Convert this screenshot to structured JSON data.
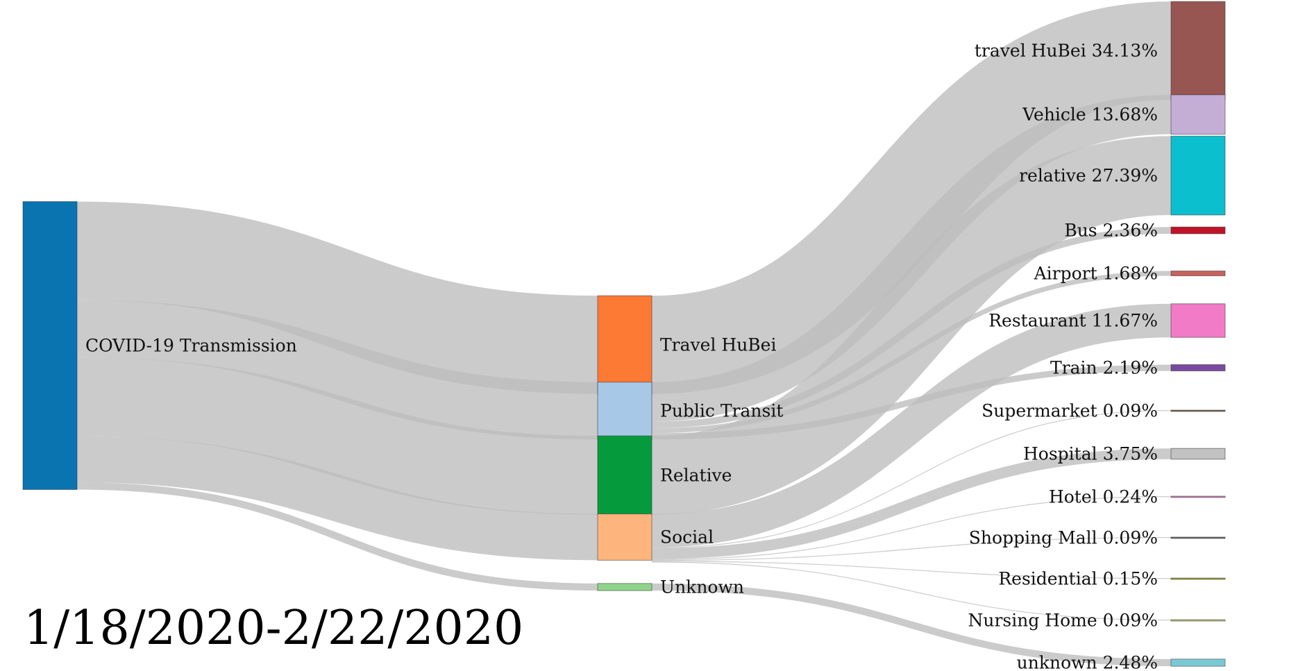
{
  "date_range": "1/18/2020-2/22/2020",
  "chart_data": {
    "type": "sankey",
    "nodes": [
      {
        "id": "root",
        "label": "COVID-19 Transmission",
        "color": "#0a74b0",
        "column": 0
      },
      {
        "id": "travel_hubei_c",
        "label": "Travel HuBei",
        "color": "#fd7a34",
        "column": 1
      },
      {
        "id": "public_transit",
        "label": "Public Transit",
        "color": "#a8c8e8",
        "column": 1
      },
      {
        "id": "relative_c",
        "label": "Relative",
        "color": "#059b3c",
        "column": 1
      },
      {
        "id": "social",
        "label": "Social",
        "color": "#fdb57d",
        "column": 1
      },
      {
        "id": "unknown_c",
        "label": "Unknown",
        "color": "#8ed48a",
        "column": 1
      },
      {
        "id": "travel_hubei",
        "label": "travel HuBei 34.13%",
        "color": "#975652",
        "column": 2
      },
      {
        "id": "vehicle",
        "label": "Vehicle 13.68%",
        "color": "#c4aed6",
        "column": 2
      },
      {
        "id": "relative",
        "label": "relative 27.39%",
        "color": "#0cbfcf",
        "column": 2
      },
      {
        "id": "bus",
        "label": "Bus 2.36%",
        "color": "#c0132a",
        "column": 2
      },
      {
        "id": "airport",
        "label": "Airport 1.68%",
        "color": "#c8625d",
        "column": 2
      },
      {
        "id": "restaurant",
        "label": "Restaurant 11.67%",
        "color": "#f17bc6",
        "column": 2
      },
      {
        "id": "train",
        "label": "Train 2.19%",
        "color": "#7a4aa2",
        "column": 2
      },
      {
        "id": "supermarket",
        "label": "Supermarket 0.09%",
        "color": "#7b6657",
        "column": 2
      },
      {
        "id": "hospital",
        "label": "Hospital 3.75%",
        "color": "#c2c2c2",
        "column": 2
      },
      {
        "id": "hotel",
        "label": "Hotel 0.24%",
        "color": "#d283bc",
        "column": 2
      },
      {
        "id": "shopping_mall",
        "label": "Shopping Mall 0.09%",
        "color": "#6b6b6b",
        "column": 2
      },
      {
        "id": "residential",
        "label": "Residential 0.15%",
        "color": "#9fa335",
        "column": 2
      },
      {
        "id": "nursing_home",
        "label": "Nursing Home 0.09%",
        "color": "#bcc07a",
        "column": 2
      },
      {
        "id": "unknown",
        "label": "unknown 2.48%",
        "color": "#7cc9d6",
        "column": 2
      }
    ],
    "links": [
      {
        "source": "root",
        "target": "travel_hubei_c",
        "value": 34.13
      },
      {
        "source": "root",
        "target": "public_transit",
        "value": 19.91
      },
      {
        "source": "root",
        "target": "relative_c",
        "value": 27.39
      },
      {
        "source": "root",
        "target": "social",
        "value": 16.08
      },
      {
        "source": "root",
        "target": "unknown_c",
        "value": 2.48
      },
      {
        "source": "travel_hubei_c",
        "target": "travel_hubei",
        "value": 34.13
      },
      {
        "source": "public_transit",
        "target": "vehicle",
        "value": 13.68
      },
      {
        "source": "public_transit",
        "target": "bus",
        "value": 2.36
      },
      {
        "source": "public_transit",
        "target": "airport",
        "value": 1.68
      },
      {
        "source": "public_transit",
        "target": "train",
        "value": 2.19
      },
      {
        "source": "relative_c",
        "target": "relative",
        "value": 27.39
      },
      {
        "source": "social",
        "target": "restaurant",
        "value": 11.67
      },
      {
        "source": "social",
        "target": "supermarket",
        "value": 0.09
      },
      {
        "source": "social",
        "target": "hospital",
        "value": 3.75
      },
      {
        "source": "social",
        "target": "hotel",
        "value": 0.24
      },
      {
        "source": "social",
        "target": "shopping_mall",
        "value": 0.09
      },
      {
        "source": "social",
        "target": "residential",
        "value": 0.15
      },
      {
        "source": "social",
        "target": "nursing_home",
        "value": 0.09
      },
      {
        "source": "unknown_c",
        "target": "unknown",
        "value": 2.48
      }
    ],
    "link_color": "#bdbdbd"
  }
}
